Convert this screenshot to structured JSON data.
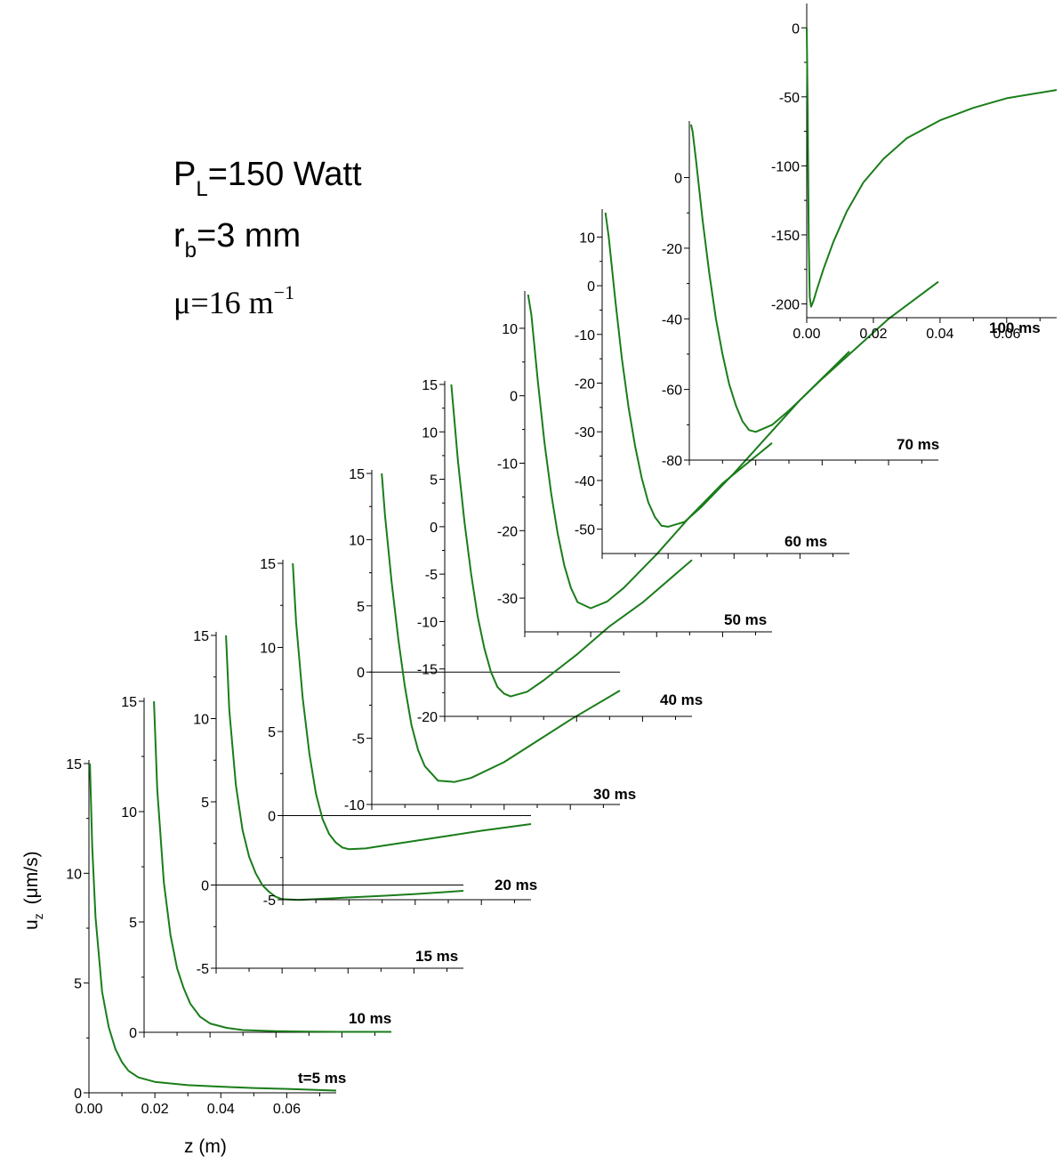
{
  "parameters": {
    "power": {
      "symbol": "P",
      "subscript": "L",
      "text": "=150 Watt"
    },
    "radius": {
      "symbol": "r",
      "subscript": "b",
      "text": "=3 mm"
    },
    "mu": {
      "symbol": "μ",
      "text": "=16 m",
      "superscript": "−1"
    }
  },
  "axes_labels": {
    "y": {
      "main": "u",
      "subscript": "z",
      "unit": "(μm/s)"
    },
    "x": "z (m)"
  },
  "colors": {
    "curve": "#1a7d1a",
    "axis": "#000000"
  },
  "chart_data": [
    {
      "type": "line",
      "panel": "t=5 ms",
      "x_ticks": [
        "0.00",
        "0.02",
        "0.04",
        "0.06"
      ],
      "ylim": [
        0,
        15
      ],
      "y_ticks": [
        0,
        5,
        10,
        15
      ],
      "x": [
        0.0003,
        0.001,
        0.002,
        0.004,
        0.006,
        0.008,
        0.01,
        0.012,
        0.015,
        0.02,
        0.03,
        0.04,
        0.05,
        0.06,
        0.075
      ],
      "values": [
        15,
        11.2,
        8.0,
        4.6,
        3.0,
        2.0,
        1.4,
        1.0,
        0.7,
        0.5,
        0.35,
        0.28,
        0.22,
        0.18,
        0.1
      ]
    },
    {
      "type": "line",
      "panel": "10 ms",
      "x_ticks": [],
      "ylim": [
        0,
        15
      ],
      "y_ticks": [
        0,
        5,
        10,
        15
      ],
      "x": [
        0.003,
        0.004,
        0.006,
        0.008,
        0.01,
        0.012,
        0.014,
        0.017,
        0.02,
        0.025,
        0.03,
        0.04,
        0.05,
        0.06,
        0.075
      ],
      "values": [
        15,
        11.0,
        6.8,
        4.4,
        2.9,
        2.0,
        1.3,
        0.7,
        0.4,
        0.2,
        0.1,
        0.05,
        0.03,
        0.02,
        0.02
      ]
    },
    {
      "type": "line",
      "panel": "15 ms",
      "x_ticks": [],
      "ylim": [
        -5,
        15
      ],
      "y_ticks": [
        -5,
        0,
        5,
        10,
        15
      ],
      "x": [
        0.003,
        0.004,
        0.006,
        0.008,
        0.01,
        0.012,
        0.014,
        0.016,
        0.018,
        0.02,
        0.025,
        0.03,
        0.035,
        0.04,
        0.05,
        0.06,
        0.075
      ],
      "values": [
        15,
        10.5,
        6.0,
        3.3,
        1.7,
        0.7,
        0.0,
        -0.4,
        -0.7,
        -0.85,
        -0.9,
        -0.85,
        -0.8,
        -0.75,
        -0.65,
        -0.55,
        -0.35
      ]
    },
    {
      "type": "line",
      "panel": "20 ms",
      "x_ticks": [],
      "ylim": [
        -5,
        15
      ],
      "y_ticks": [
        -5,
        0,
        5,
        10,
        15
      ],
      "x": [
        0.003,
        0.004,
        0.006,
        0.008,
        0.01,
        0.012,
        0.014,
        0.016,
        0.018,
        0.02,
        0.025,
        0.03,
        0.04,
        0.05,
        0.06,
        0.075
      ],
      "values": [
        15,
        11.5,
        7.0,
        3.7,
        1.3,
        -0.2,
        -1.1,
        -1.6,
        -1.9,
        -2.0,
        -1.95,
        -1.8,
        -1.5,
        -1.2,
        -0.9,
        -0.5
      ]
    },
    {
      "type": "line",
      "panel": "30 ms",
      "x_ticks": [],
      "ylim": [
        -10,
        15
      ],
      "y_ticks": [
        -10,
        -5,
        0,
        5,
        10,
        15
      ],
      "x": [
        0.003,
        0.004,
        0.006,
        0.008,
        0.01,
        0.012,
        0.014,
        0.016,
        0.02,
        0.025,
        0.03,
        0.04,
        0.05,
        0.06,
        0.075
      ],
      "values": [
        15,
        11.8,
        6.8,
        2.5,
        -1.1,
        -4.0,
        -5.9,
        -7.1,
        -8.2,
        -8.3,
        -8.0,
        -6.8,
        -5.2,
        -3.6,
        -1.4
      ]
    },
    {
      "type": "line",
      "panel": "40 ms",
      "x_ticks": [],
      "ylim": [
        -20,
        15
      ],
      "y_ticks": [
        -20,
        -15,
        -10,
        -5,
        0,
        5,
        10,
        15
      ],
      "x": [
        0.002,
        0.003,
        0.004,
        0.006,
        0.008,
        0.01,
        0.012,
        0.014,
        0.016,
        0.018,
        0.02,
        0.025,
        0.03,
        0.04,
        0.05,
        0.06,
        0.075
      ],
      "values": [
        15,
        11.0,
        7.0,
        0.5,
        -5.0,
        -9.5,
        -12.8,
        -15.3,
        -16.9,
        -17.6,
        -17.9,
        -17.4,
        -16.2,
        -13.5,
        -10.5,
        -8.0,
        -3.5
      ]
    },
    {
      "type": "line",
      "panel": "50 ms",
      "x_ticks": [],
      "ylim": [
        -35,
        15
      ],
      "y_ticks": [
        -30,
        -20,
        -10,
        0,
        10
      ],
      "x": [
        0.001,
        0.002,
        0.004,
        0.006,
        0.008,
        0.01,
        0.012,
        0.014,
        0.016,
        0.02,
        0.025,
        0.03,
        0.04,
        0.05,
        0.06,
        0.075
      ],
      "values": [
        15,
        12.0,
        2.0,
        -7.0,
        -14.5,
        -20.5,
        -25.2,
        -28.5,
        -30.6,
        -31.5,
        -30.5,
        -28.5,
        -23.5,
        -18.0,
        -13.0,
        -7.0
      ]
    },
    {
      "type": "line",
      "panel": "60 ms",
      "x_ticks": [],
      "ylim": [
        -55,
        15
      ],
      "y_ticks": [
        -50,
        -40,
        -30,
        -20,
        -10,
        0,
        10
      ],
      "x": [
        0.001,
        0.002,
        0.004,
        0.006,
        0.008,
        0.01,
        0.012,
        0.014,
        0.016,
        0.018,
        0.02,
        0.025,
        0.03,
        0.04,
        0.05,
        0.06,
        0.075
      ],
      "values": [
        15,
        10.0,
        -3.0,
        -15.0,
        -25.0,
        -33.0,
        -39.5,
        -44.5,
        -47.5,
        -49.3,
        -49.5,
        -48.5,
        -45.5,
        -38.5,
        -31.0,
        -23.5,
        -13.5
      ]
    },
    {
      "type": "line",
      "panel": "70 ms",
      "x_ticks": [],
      "ylim": [
        -80,
        15
      ],
      "y_ticks": [
        -80,
        -60,
        -40,
        -20,
        0
      ],
      "x": [
        0.0005,
        0.001,
        0.002,
        0.004,
        0.006,
        0.008,
        0.01,
        0.012,
        0.014,
        0.016,
        0.018,
        0.02,
        0.025,
        0.03,
        0.04,
        0.05,
        0.06,
        0.075
      ],
      "values": [
        15,
        13.0,
        5.0,
        -12.0,
        -27.0,
        -40.0,
        -50.0,
        -58.5,
        -64.5,
        -69.0,
        -71.5,
        -72.0,
        -70.0,
        -66.0,
        -57.0,
        -48.5,
        -40.0,
        -29.5
      ]
    },
    {
      "type": "line",
      "panel": "100 ms",
      "x_ticks": [
        "0.00",
        "0.02",
        "0.04",
        "0.06"
      ],
      "ylim": [
        -210,
        15
      ],
      "y_ticks": [
        -200,
        -150,
        -100,
        -50,
        0
      ],
      "x": [
        0.0,
        0.0003,
        0.0006,
        0.0009,
        0.0013,
        0.002,
        0.003,
        0.005,
        0.008,
        0.012,
        0.017,
        0.023,
        0.03,
        0.04,
        0.05,
        0.06,
        0.075
      ],
      "values": [
        0,
        -60,
        -150,
        -195,
        -202,
        -198,
        -190,
        -175,
        -155,
        -133,
        -112,
        -95,
        -80,
        -67,
        -58,
        -51,
        -45
      ]
    }
  ]
}
